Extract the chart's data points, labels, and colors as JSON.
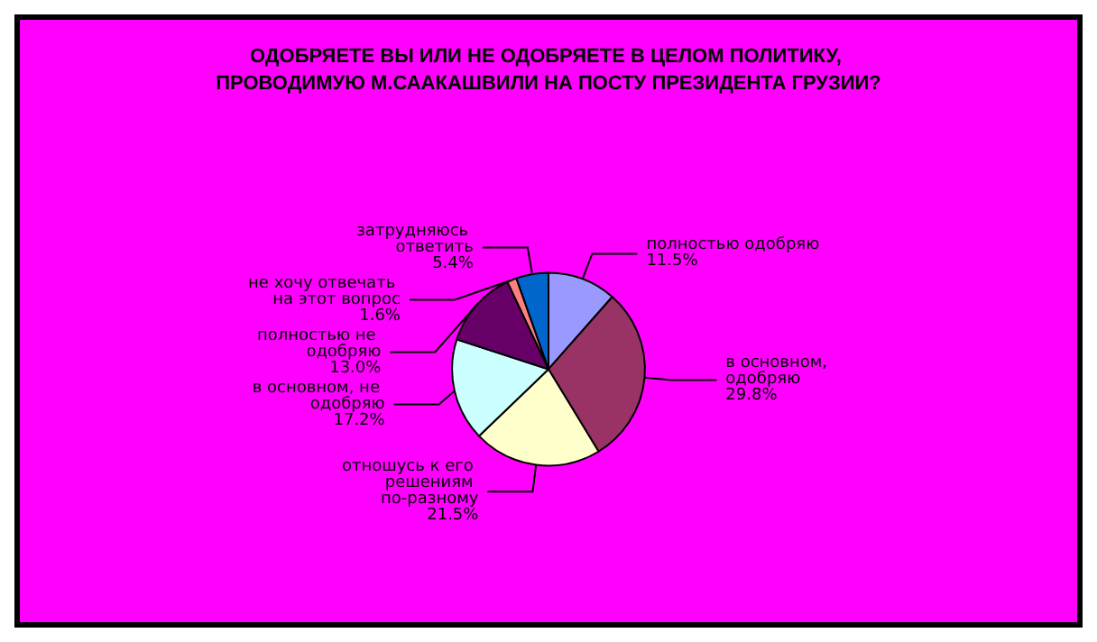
{
  "chart_data": {
    "type": "pie",
    "title": "ОДОБРЯЕТЕ ВЫ ИЛИ НЕ ОДОБРЯЕТЕ В ЦЕЛОМ ПОЛИТИКУ, ПРОВОДИМУЮ М.СААКАШВИЛИ НА ПОСТУ ПРЕЗИДЕНТА ГРУЗИИ?",
    "categories": [
      "полностью одобряю",
      "в основном, одобряю",
      "отношусь к его решениям по-разному",
      "в основном, не одобряю",
      "полностью не одобряю",
      "не хочу отвечать на этот вопрос",
      "затрудняюсь ответить"
    ],
    "values": [
      11.5,
      29.8,
      21.5,
      17.2,
      13.0,
      1.6,
      5.4
    ],
    "value_labels": [
      "11.5%",
      "29.8%",
      "21.5%",
      "17.2%",
      "13.0%",
      "1.6%",
      "5.4%"
    ],
    "colors": [
      "#9999ff",
      "#993366",
      "#ffffcc",
      "#ccffff",
      "#660066",
      "#ff8080",
      "#0066cc"
    ],
    "legend": false
  }
}
